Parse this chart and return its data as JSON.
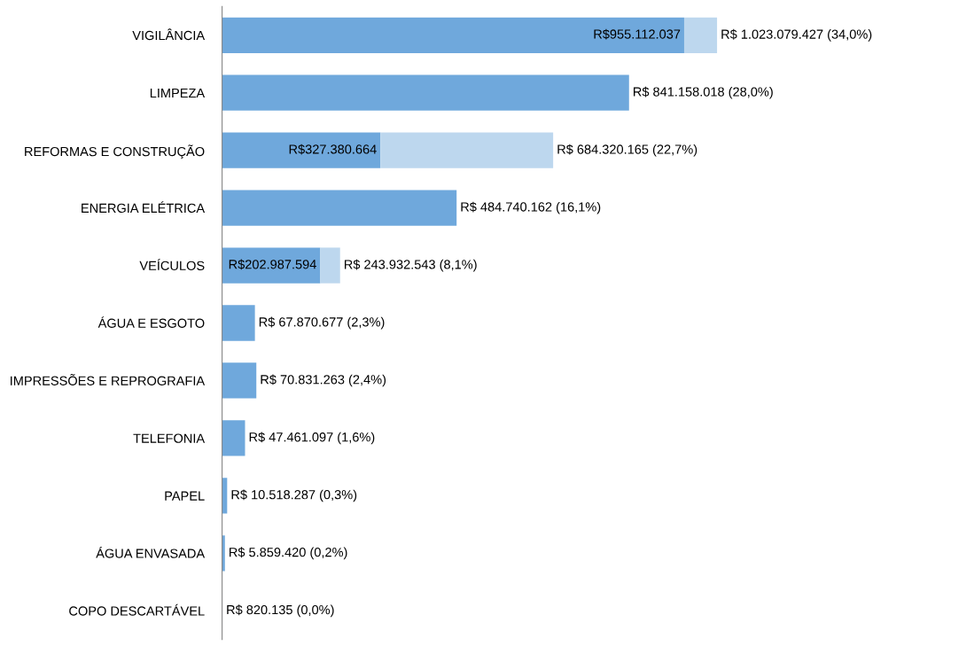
{
  "chart_data": {
    "type": "bar",
    "orientation": "horizontal",
    "stacked": true,
    "categories": [
      "VIGILÂNCIA",
      "LIMPEZA",
      "REFORMAS E CONSTRUÇÃO",
      "ENERGIA ELÉTRICA",
      "VEÍCULOS",
      "ÁGUA E ESGOTO",
      "IMPRESSÕES E REPROGRAFIA",
      "TELEFONIA",
      "PAPEL",
      "ÁGUA ENVASADA",
      "COPO DESCARTÁVEL"
    ],
    "series": [
      {
        "color": "#6fa8dc",
        "values": [
          955112037,
          841158018,
          327380664,
          484740162,
          202987594,
          67870677,
          70831263,
          47461097,
          10518287,
          5859420,
          820135
        ],
        "value_labels": [
          "R$955.112.037",
          null,
          "R$327.380.664",
          null,
          "R$202.987.594",
          null,
          null,
          null,
          null,
          null,
          null
        ]
      },
      {
        "color": "#bdd7ee",
        "values": [
          67967390,
          0,
          356939501,
          0,
          40944949,
          0,
          0,
          0,
          0,
          0,
          0
        ]
      }
    ],
    "totals": [
      "R$ 1.023.079.427 (34,0%)",
      "R$ 841.158.018 (28,0%)",
      "R$ 684.320.165 (22,7%)",
      "R$ 484.740.162 (16,1%)",
      "R$ 243.932.543 (8,1%)",
      "R$ 67.870.677 (2,3%)",
      "R$ 70.831.263 (2,4%)",
      "R$ 47.461.097 (1,6%)",
      "R$ 10.518.287 (0,3%)",
      "R$ 5.859.420 (0,2%)",
      "R$ 820.135 (0,0%)"
    ],
    "tick_labels": "y",
    "grid": false,
    "legend": false
  }
}
